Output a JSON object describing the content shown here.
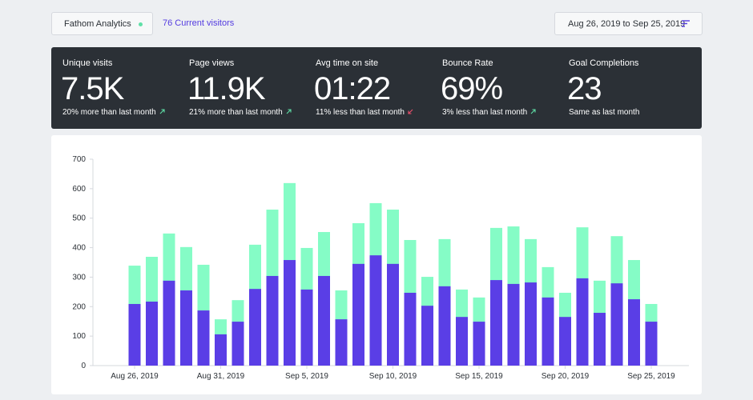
{
  "header": {
    "site": "Fathom Analytics",
    "visitors": "76 Current visitors",
    "date_range": "Aug 26, 2019 to Sep 25, 2019"
  },
  "stats": [
    {
      "label": "Unique visits",
      "value": "7.5K",
      "change": "20% more than last month"
    },
    {
      "label": "Page views",
      "value": "11.9K",
      "change": "21% more than last month"
    },
    {
      "label": "Avg time on site",
      "value": "01:22",
      "change": "11% less than last month"
    },
    {
      "label": "Bounce Rate",
      "value": "69%",
      "change": "3% less than last month"
    },
    {
      "label": "Goal Completions",
      "value": "23",
      "change": "Same as last month"
    }
  ],
  "chart_data": {
    "type": "bar",
    "categories": [
      "Aug 26, 2019",
      null,
      null,
      null,
      null,
      "Aug 31, 2019",
      null,
      null,
      null,
      null,
      "Sep 5, 2019",
      null,
      null,
      null,
      null,
      "Sep 10, 2019",
      null,
      null,
      null,
      null,
      "Sep 15, 2019",
      null,
      null,
      null,
      null,
      "Sep 20, 2019",
      null,
      null,
      null,
      null,
      "Sep 25, 2019"
    ],
    "series": [
      {
        "color": "#85fcc6",
        "values": [
          339,
          369,
          448,
          402,
          342,
          157,
          222,
          410,
          529,
          619,
          399,
          453,
          255,
          483,
          551,
          529,
          426,
          301,
          429,
          258,
          231,
          467,
          472,
          429,
          334,
          247,
          469,
          288,
          439,
          358,
          209
        ]
      },
      {
        "color": "#5a3ee6",
        "values": [
          209,
          217,
          288,
          255,
          187,
          106,
          149,
          260,
          304,
          358,
          258,
          304,
          157,
          345,
          374,
          345,
          247,
          203,
          269,
          165,
          149,
          290,
          277,
          282,
          231,
          165,
          296,
          179,
          279,
          225,
          149
        ]
      }
    ],
    "ylim": [
      0,
      700
    ],
    "yticks": [
      0,
      100,
      200,
      300,
      400,
      500,
      600,
      700
    ],
    "grid": false
  }
}
